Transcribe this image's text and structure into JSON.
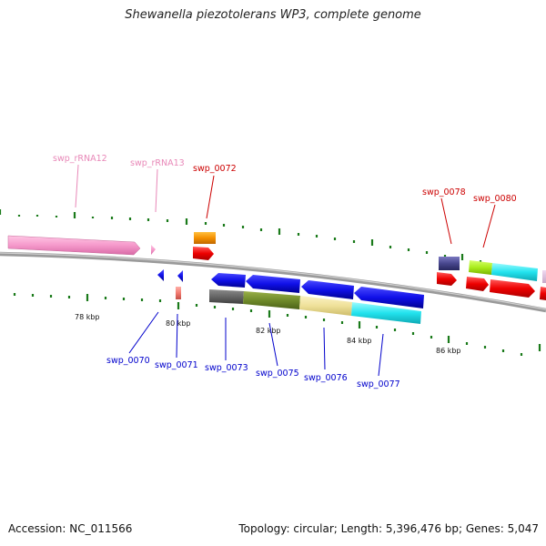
{
  "title": "Shewanella piezotolerans WP3, complete genome",
  "footer": {
    "accession": "Accession: NC_011566",
    "summary": "Topology: circular; Length: 5,396,476 bp; Genes: 5,047"
  },
  "colors": {
    "backbone": "#8a8a8a",
    "tick": "#1a7a1a",
    "label_top": "#cc0000",
    "label_bottom": "#0000cc",
    "label_rna": "#e888b8"
  },
  "tick_labels": [
    "78 kbp",
    "80 kbp",
    "82 kbp",
    "84 kbp",
    "86 kbp"
  ],
  "gene_labels": {
    "top": [
      "swp_rRNA12",
      "swp_rRNA13",
      "swp_0072",
      "swp_0078",
      "swp_0080"
    ],
    "bottom": [
      "swp_0070",
      "swp_0071",
      "swp_0073",
      "swp_0075",
      "swp_0076",
      "swp_0077"
    ]
  }
}
